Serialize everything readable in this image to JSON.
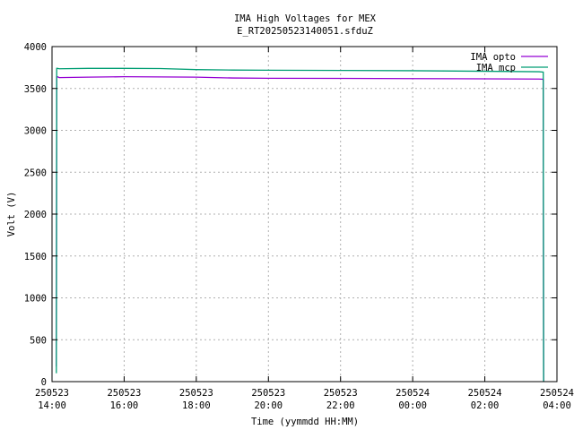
{
  "chart_data": {
    "type": "line",
    "title": "IMA High Voltages for MEX",
    "subtitle": "E_RT20250523140051.sfduZ",
    "xlabel": "Time (yymmdd HH:MM)",
    "ylabel": "Volt (V)",
    "xlim_hours": [
      14,
      28
    ],
    "ylim": [
      0,
      4000
    ],
    "y_ticks": [
      0,
      500,
      1000,
      1500,
      2000,
      2500,
      3000,
      3500,
      4000
    ],
    "x_ticks": [
      {
        "hours": 14,
        "date": "250523",
        "time": "14:00"
      },
      {
        "hours": 16,
        "date": "250523",
        "time": "16:00"
      },
      {
        "hours": 18,
        "date": "250523",
        "time": "18:00"
      },
      {
        "hours": 20,
        "date": "250523",
        "time": "20:00"
      },
      {
        "hours": 22,
        "date": "250523",
        "time": "22:00"
      },
      {
        "hours": 24,
        "date": "250524",
        "time": "00:00"
      },
      {
        "hours": 26,
        "date": "250524",
        "time": "02:00"
      },
      {
        "hours": 28,
        "date": "250524",
        "time": "04:00"
      }
    ],
    "grid": true,
    "legend_position": "top-right",
    "series": [
      {
        "name": "IMA opto",
        "color": "#9400d3",
        "x_hours": [
          14.12,
          14.13,
          14.15,
          14.2,
          15.0,
          16.0,
          17.0,
          18.0,
          19.0,
          20.0,
          22.0,
          24.0,
          26.0,
          27.5,
          27.62,
          27.63
        ],
        "y": [
          180,
          3640,
          3640,
          3630,
          3635,
          3640,
          3638,
          3635,
          3625,
          3622,
          3620,
          3618,
          3615,
          3612,
          3610,
          0
        ]
      },
      {
        "name": "IMA mcp",
        "color": "#009e73",
        "x_hours": [
          14.12,
          14.13,
          14.15,
          14.2,
          15.0,
          16.0,
          17.0,
          18.0,
          19.0,
          20.0,
          22.0,
          24.0,
          26.0,
          27.5,
          27.62,
          27.63
        ],
        "y": [
          100,
          3740,
          3740,
          3735,
          3740,
          3740,
          3738,
          3725,
          3720,
          3718,
          3715,
          3712,
          3705,
          3700,
          3695,
          0
        ]
      }
    ]
  }
}
